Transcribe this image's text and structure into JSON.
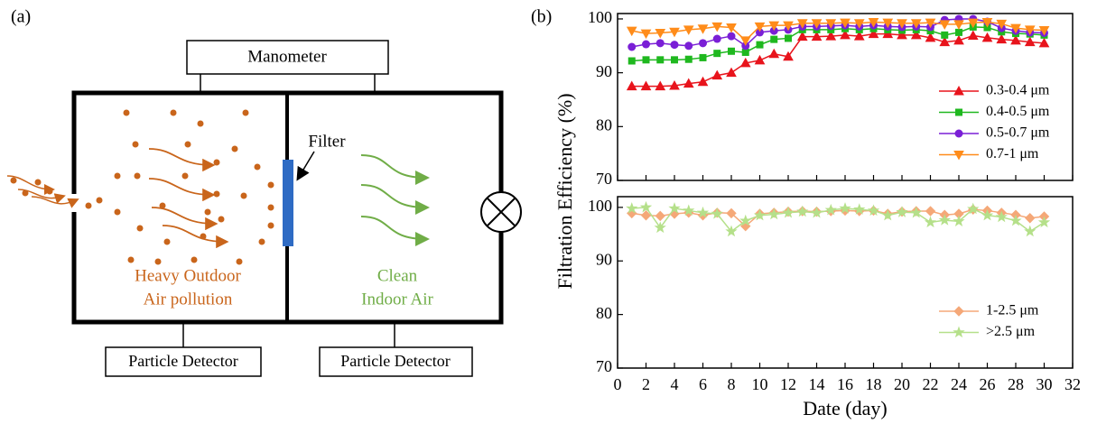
{
  "diagram": {
    "panel_label": "(a)",
    "manometer": "Manometer",
    "filter": "Filter",
    "detectors": [
      "Particle Detector",
      "Particle Detector"
    ],
    "outdoor_label": [
      "Heavy Outdoor",
      "Air pollution"
    ],
    "indoor_label": [
      "Clean",
      "Indoor Air"
    ]
  },
  "chart_data": [
    {
      "type": "line",
      "panel_label": "(b)",
      "y_label": "Filtration Efficiency (%)",
      "x": [
        1,
        2,
        3,
        4,
        5,
        6,
        7,
        8,
        9,
        10,
        11,
        12,
        13,
        14,
        15,
        16,
        17,
        18,
        19,
        20,
        21,
        22,
        23,
        24,
        25,
        26,
        27,
        28,
        29,
        30
      ],
      "ylim": [
        70,
        101
      ],
      "yticks": [
        70,
        80,
        90,
        100
      ],
      "legend": "center right",
      "series": [
        {
          "name": "0.3-0.4 μm",
          "color": "#e8141c",
          "marker": "triangle-up",
          "values": [
            87.5,
            87.5,
            87.5,
            87.6,
            88,
            88.3,
            89.5,
            90,
            91.8,
            92.3,
            93.5,
            93,
            96.7,
            96.7,
            96.8,
            97,
            96.8,
            97.2,
            97.2,
            97,
            97,
            96.5,
            95.7,
            96,
            96.9,
            96.5,
            96.2,
            96,
            95.7,
            95.5
          ]
        },
        {
          "name": "0.4-0.5 μm",
          "color": "#1fb81f",
          "marker": "square",
          "values": [
            92.2,
            92.4,
            92.4,
            92.4,
            92.5,
            92.8,
            93.6,
            94,
            93.8,
            95.2,
            96.2,
            96.4,
            98,
            98,
            98,
            98.2,
            98,
            98.2,
            98,
            97.9,
            98,
            97.8,
            97,
            97.5,
            98.5,
            98.4,
            97.6,
            97.3,
            97.2,
            97
          ]
        },
        {
          "name": "0.5-0.7 μm",
          "color": "#7a1fd6",
          "marker": "circle",
          "values": [
            94.8,
            95.3,
            95.5,
            95.2,
            95,
            95.5,
            96.3,
            96.8,
            95,
            97.5,
            97.8,
            98,
            98.6,
            98.6,
            98.7,
            98.8,
            98.6,
            98.8,
            98.6,
            98.5,
            98.6,
            98.5,
            99.8,
            100,
            100,
            99.5,
            98.3,
            97.8,
            97.5,
            97.4
          ]
        },
        {
          "name": "0.7-1 μm",
          "color": "#ff8c1a",
          "marker": "triangle-down",
          "values": [
            97.8,
            97.3,
            97.4,
            97.6,
            98,
            98.2,
            98.6,
            98.4,
            96,
            98.6,
            98.8,
            98.8,
            99.2,
            99.2,
            99.2,
            99.3,
            99.2,
            99.4,
            99.3,
            99.2,
            99.2,
            99.3,
            99,
            99,
            99.3,
            99.4,
            99.1,
            98.3,
            98,
            97.9
          ]
        }
      ]
    },
    {
      "type": "line",
      "x_label": "Date (day)",
      "x": [
        1,
        2,
        3,
        4,
        5,
        6,
        7,
        8,
        9,
        10,
        11,
        12,
        13,
        14,
        15,
        16,
        17,
        18,
        19,
        20,
        21,
        22,
        23,
        24,
        25,
        26,
        27,
        28,
        29,
        30
      ],
      "xlim": [
        0,
        32
      ],
      "xticks": [
        0,
        2,
        4,
        6,
        8,
        10,
        12,
        14,
        16,
        18,
        20,
        22,
        24,
        26,
        28,
        30,
        32
      ],
      "ylim": [
        70,
        102
      ],
      "yticks": [
        70,
        80,
        90,
        100
      ],
      "legend": "lower right",
      "series": [
        {
          "name": "1-2.5 μm",
          "color": "#f5a878",
          "marker": "diamond",
          "values": [
            98.9,
            98.5,
            98.4,
            98.8,
            99,
            98.5,
            99,
            98.9,
            96.5,
            98.8,
            99,
            99.2,
            99.3,
            99.2,
            99.3,
            99.4,
            99.3,
            99.4,
            98.8,
            99.2,
            99.3,
            99.3,
            98.6,
            98.8,
            99.6,
            99.4,
            99,
            98.6,
            98,
            98.3
          ]
        },
        {
          "name": ">2.5 μm",
          "color": "#b5e08a",
          "marker": "star",
          "values": [
            99.8,
            100,
            96.2,
            99.8,
            99.4,
            99,
            98.8,
            95.5,
            97.5,
            98.5,
            98.7,
            99,
            99.2,
            99,
            99.5,
            99.8,
            99.6,
            99.4,
            98.5,
            99.1,
            99,
            97.2,
            97.6,
            97.4,
            99.7,
            98.5,
            98.2,
            97.5,
            95.5,
            97.2
          ]
        }
      ]
    }
  ]
}
